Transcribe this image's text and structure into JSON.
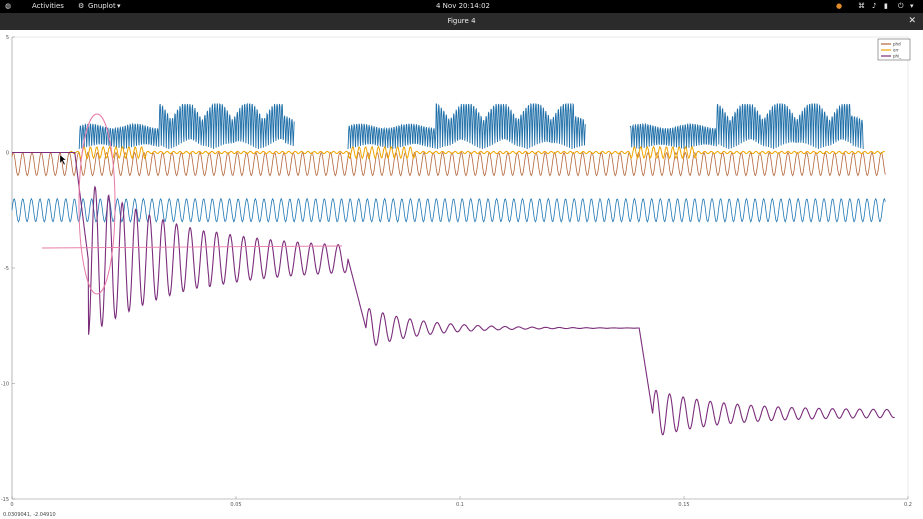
{
  "topbar": {
    "activities": "Activities",
    "app_menu": "Gnuplot",
    "clock": "4 Nov  20:14:02"
  },
  "window": {
    "title": "Figure 4",
    "close": "✕"
  },
  "status": {
    "coordinates": "0.0309041, -2.04910"
  },
  "chart_data": {
    "type": "line",
    "title": "",
    "xlabel": "",
    "ylabel": "",
    "xlim": [
      0,
      0.2
    ],
    "ylim": [
      -15,
      5
    ],
    "x_ticks": [
      "0",
      "0.05",
      "0.1",
      "0.15",
      "0.2"
    ],
    "y_ticks": [
      "5",
      "0",
      "-5",
      "-10",
      "-15"
    ],
    "legend_position": "top-right",
    "series": [
      {
        "name": "phd",
        "color": "#b5653a",
        "description_values": {
          "band_center": -0.5,
          "amplitude": 0.5
        }
      },
      {
        "name": "err",
        "color": "#f0a500",
        "description_values": {
          "baseline": 0.0
        }
      },
      {
        "name": "phi_",
        "color": "#7b2d7b",
        "description_values": {
          "plateaus": [
            -4.6,
            -7.6,
            -11.3
          ],
          "step_times": [
            0.075,
            0.14
          ]
        }
      }
    ],
    "unlabeled_series": [
      {
        "color": "#1f77b4",
        "band_center": -2.5,
        "amplitude": 0.5
      },
      {
        "color": "#1f6fa8",
        "burst_baseline": 0.15,
        "burst_peak": 2.1,
        "burst_windows": [
          [
            0.015,
            0.063
          ],
          [
            0.075,
            0.128
          ],
          [
            0.138,
            0.19
          ]
        ]
      }
    ]
  }
}
